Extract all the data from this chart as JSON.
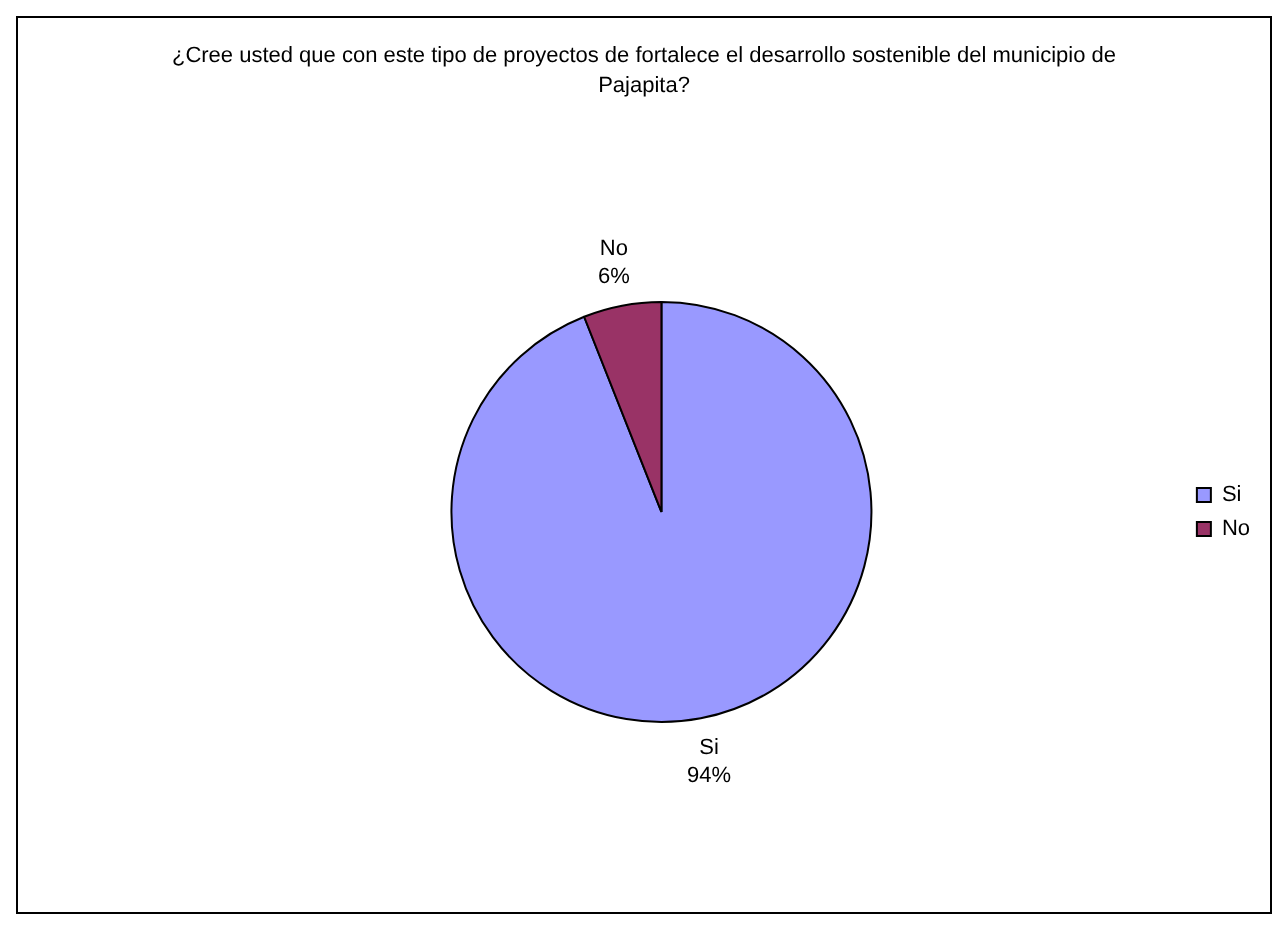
{
  "chart_data": {
    "type": "pie",
    "title": "¿Cree usted que con este tipo de proyectos de fortalece el desarrollo sostenible del municipio de Pajapita?",
    "categories": [
      "Si",
      "No"
    ],
    "values": [
      94,
      6
    ],
    "value_labels": [
      "94%",
      "6%"
    ],
    "colors": [
      "#9999ff",
      "#993366"
    ],
    "legend": "right"
  }
}
